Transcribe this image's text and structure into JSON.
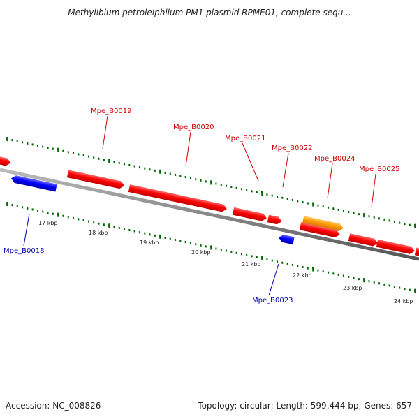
{
  "title": "Methylibium petroleiphilum PM1 plasmid RPME01, complete sequ...",
  "footer": {
    "accession": "Accession: NC_008826",
    "summary": "Topology: circular; Length: 599,444 bp; Genes: 657"
  },
  "colors": {
    "forward_gene": "#ff0000",
    "reverse_gene": "#0000ff",
    "highlight_gene": "#ff9900",
    "backbone": "#888888",
    "tick": "#006600",
    "forward_label": "#cc0000",
    "reverse_label": "#0000aa"
  },
  "ruler_labels": [
    "17 kbp",
    "18 kbp",
    "19 kbp",
    "20 kbp",
    "21 kbp",
    "22 kbp",
    "23 kbp",
    "24 kbp"
  ],
  "genes": [
    {
      "label": "",
      "strand": "forward",
      "color": "forward"
    },
    {
      "label": "Mpe_B0018",
      "strand": "reverse",
      "color": "reverse"
    },
    {
      "label": "Mpe_B0019",
      "strand": "forward",
      "color": "forward"
    },
    {
      "label": "Mpe_B0020",
      "strand": "forward",
      "color": "forward"
    },
    {
      "label": "Mpe_B0021",
      "strand": "forward",
      "color": "forward"
    },
    {
      "label": "Mpe_B0022",
      "strand": "forward",
      "color": "forward"
    },
    {
      "label": "Mpe_B0023",
      "strand": "reverse",
      "color": "reverse"
    },
    {
      "label": "Mpe_B0024",
      "strand": "forward",
      "color": "highlight"
    },
    {
      "label": "",
      "strand": "forward",
      "color": "forward"
    },
    {
      "label": "Mpe_B0025",
      "strand": "forward",
      "color": "forward"
    },
    {
      "label": "",
      "strand": "forward",
      "color": "forward"
    }
  ]
}
